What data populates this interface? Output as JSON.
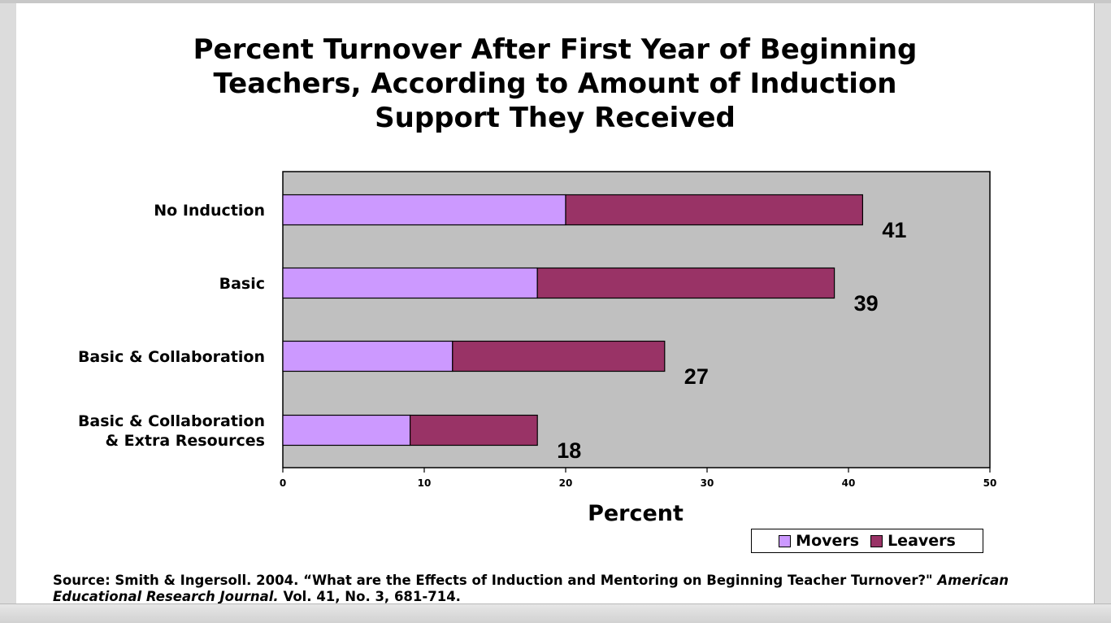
{
  "chart_data": {
    "type": "bar",
    "orientation": "horizontal",
    "stacked": true,
    "title_lines": [
      "Percent Turnover After First Year of Beginning",
      "Teachers, According to Amount of Induction",
      "Support They Received"
    ],
    "categories": [
      [
        "No Induction"
      ],
      [
        "Basic"
      ],
      [
        "Basic & Collaboration"
      ],
      [
        "Basic & Collaboration",
        "& Extra Resources"
      ]
    ],
    "series": [
      {
        "name": "Movers",
        "color": "#cc99ff",
        "values": [
          20,
          18,
          12,
          9
        ]
      },
      {
        "name": "Leavers",
        "color": "#993366",
        "values": [
          21,
          21,
          15,
          9
        ]
      }
    ],
    "totals": [
      "41",
      "39",
      "27",
      "18"
    ],
    "xlabel": "Percent",
    "xlim": [
      0,
      50
    ],
    "xticks": [
      "0",
      "10",
      "20",
      "30",
      "40",
      "50"
    ],
    "plot_background": "#c0c0c0",
    "grid": false,
    "legend_position": "bottom-right"
  },
  "source": {
    "prefix": "Source: Smith & Ingersoll.  2004. “What are the Effects of Induction and Mentoring on Beginning Teacher Turnover?\" ",
    "journal": "American Educational Research Journal.",
    "suffix": "  Vol. 41, No. 3, 681-714."
  }
}
